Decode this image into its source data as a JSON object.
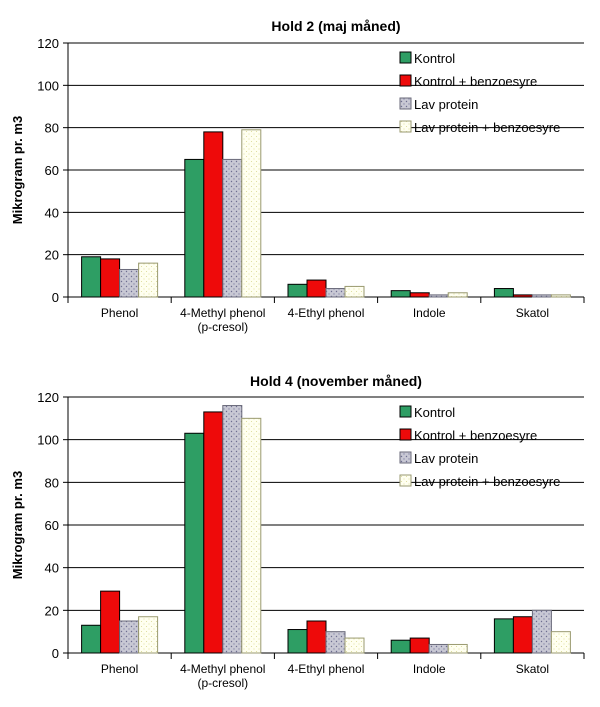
{
  "series_names": [
    "Kontrol",
    "Kontrol + benzoesyre",
    "Lav protein",
    "Lav protein + benzoesyre"
  ],
  "series_colors": [
    "#2e9e64",
    "#ee0a0a",
    "#c8c8d4",
    "#fffff0"
  ],
  "categories": [
    [
      "Phenol"
    ],
    [
      "4-Methyl phenol",
      "(p-cresol)"
    ],
    [
      "4-Ethyl phenol"
    ],
    [
      "Indole"
    ],
    [
      "Skatol"
    ]
  ],
  "chart_data": [
    {
      "type": "bar",
      "title": "Hold 2 (maj måned)",
      "ylabel": "Mikrogram pr. m3",
      "xlabel": "",
      "ylim": [
        0,
        120
      ],
      "yticks": [
        0,
        20,
        40,
        60,
        80,
        100,
        120
      ],
      "grid": true,
      "legend": "top-right",
      "categories": [
        "Phenol",
        "4-Methyl phenol (p-cresol)",
        "4-Ethyl phenol",
        "Indole",
        "Skatol"
      ],
      "series": [
        {
          "name": "Kontrol",
          "values": [
            19,
            65,
            6,
            3,
            4
          ]
        },
        {
          "name": "Kontrol + benzoesyre",
          "values": [
            18,
            78,
            8,
            2,
            1
          ]
        },
        {
          "name": "Lav protein",
          "values": [
            13,
            65,
            4,
            1,
            1
          ]
        },
        {
          "name": "Lav protein + benzoesyre",
          "values": [
            16,
            79,
            5,
            2,
            1
          ]
        }
      ]
    },
    {
      "type": "bar",
      "title": "Hold 4 (november måned)",
      "ylabel": "Mikrogram pr. m3",
      "xlabel": "",
      "ylim": [
        0,
        120
      ],
      "yticks": [
        0,
        20,
        40,
        60,
        80,
        100,
        120
      ],
      "grid": true,
      "legend": "top-right",
      "categories": [
        "Phenol",
        "4-Methyl phenol (p-cresol)",
        "4-Ethyl phenol",
        "Indole",
        "Skatol"
      ],
      "series": [
        {
          "name": "Kontrol",
          "values": [
            13,
            103,
            11,
            6,
            16
          ]
        },
        {
          "name": "Kontrol + benzoesyre",
          "values": [
            29,
            113,
            15,
            7,
            17
          ]
        },
        {
          "name": "Lav protein",
          "values": [
            15,
            116,
            10,
            4,
            20
          ]
        },
        {
          "name": "Lav protein + benzoesyre",
          "values": [
            17,
            110,
            7,
            4,
            10
          ]
        }
      ]
    }
  ]
}
